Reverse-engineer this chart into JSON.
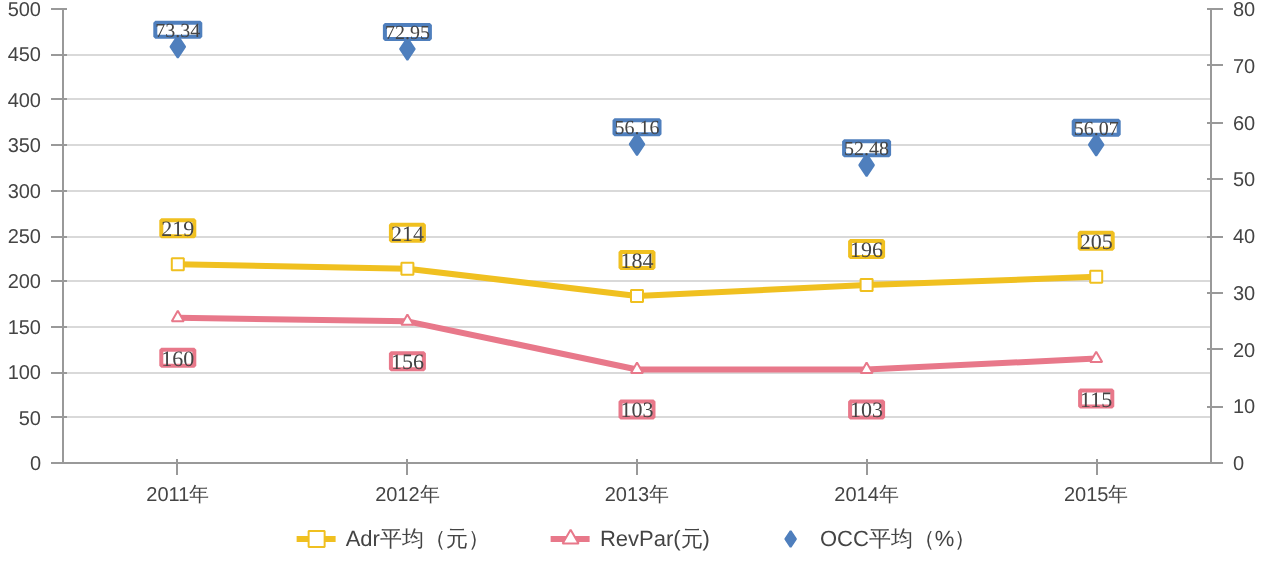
{
  "chart_data": {
    "type": "line",
    "categories": [
      "2011年",
      "2012年",
      "2013年",
      "2014年",
      "2015年"
    ],
    "series": [
      {
        "name": "Adr平均（元）",
        "color": "#f0c020",
        "marker": "square",
        "values": [
          219,
          214,
          184,
          196,
          205
        ]
      },
      {
        "name": "RevPar(元)",
        "color": "#e8788a",
        "marker": "triangle",
        "values": [
          160,
          156,
          103,
          103,
          115
        ]
      },
      {
        "name": "OCC平均（%）",
        "type": "scatter",
        "axis": "y2",
        "color": "#4f7fbd",
        "marker": "diamond",
        "values": [
          73.34,
          72.95,
          56.16,
          52.48,
          56.07
        ]
      }
    ],
    "ylim": [
      0,
      500
    ],
    "yticks": [
      0,
      50,
      100,
      150,
      200,
      250,
      300,
      350,
      400,
      450,
      500
    ],
    "y2lim": [
      0,
      80
    ],
    "y2ticks": [
      0,
      10,
      20,
      30,
      40,
      50,
      60,
      70,
      80
    ],
    "grid": "y",
    "legend": "bottom",
    "data_labels": true
  }
}
